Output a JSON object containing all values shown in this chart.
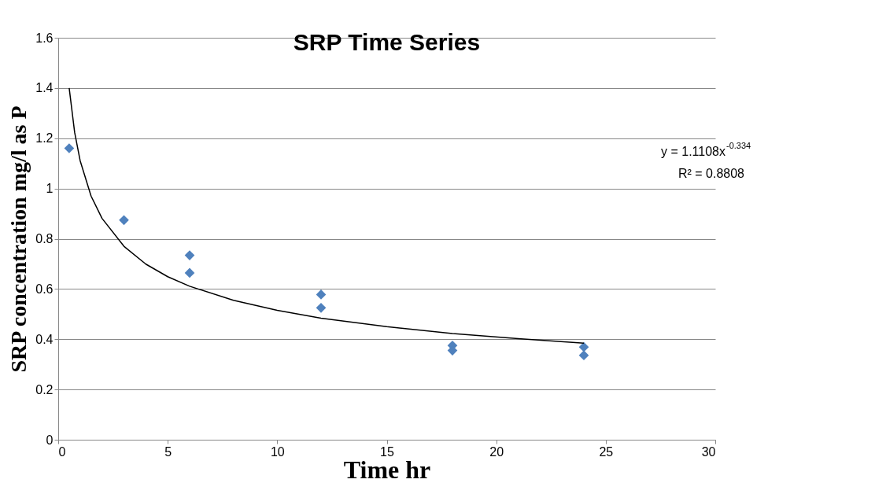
{
  "chart_data": {
    "type": "scatter",
    "title": "SRP Time Series",
    "xlabel": "Time hr",
    "ylabel": "SRP  concentration mg/l as P",
    "xlim": [
      0,
      30
    ],
    "xticks": [
      0,
      5,
      10,
      15,
      20,
      25,
      30
    ],
    "ylim": [
      0,
      1.6
    ],
    "yticks": [
      0,
      0.2,
      0.4,
      0.6,
      0.8,
      1,
      1.2,
      1.4,
      1.6
    ],
    "grid": "y",
    "series": [
      {
        "marker": "diamond",
        "color": "#4f81bd",
        "x": [
          0.5,
          3,
          6,
          6,
          12,
          12,
          18,
          18,
          24,
          24
        ],
        "values": [
          1.16,
          0.874,
          0.734,
          0.664,
          0.578,
          0.525,
          0.375,
          0.355,
          0.369,
          0.336
        ]
      },
      {
        "type": "line",
        "color": "#000000",
        "line_style": "solid",
        "x": [
          0.5,
          0.75,
          1,
          1.5,
          2,
          3,
          4,
          5,
          6,
          8,
          10,
          12,
          15,
          18,
          21,
          24
        ],
        "values": [
          1.4,
          1.223,
          1.111,
          0.97,
          0.881,
          0.77,
          0.699,
          0.649,
          0.611,
          0.555,
          0.515,
          0.484,
          0.45,
          0.423,
          0.402,
          0.384
        ]
      }
    ],
    "annotations": [
      "y = 1.1108x$^{-0.334}$",
      "R² = 0.8808"
    ]
  }
}
